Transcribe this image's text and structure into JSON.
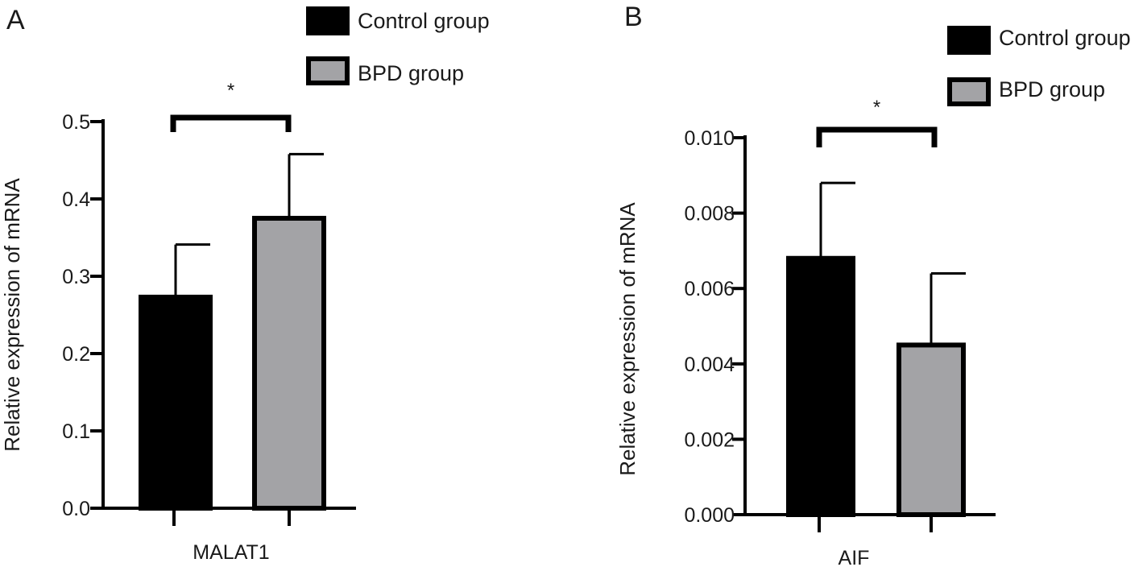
{
  "chart_data": [
    {
      "panel_label": "A",
      "type": "bar",
      "categories": [
        "MALAT1"
      ],
      "series": [
        {
          "name": "Control group",
          "values": [
            0.273
          ],
          "error": [
            0.068
          ],
          "color": "#000000"
        },
        {
          "name": "BPD group",
          "values": [
            0.375
          ],
          "error": [
            0.083
          ],
          "color": "#a3a3a6"
        }
      ],
      "ylabel": "Relative expression of mRNA",
      "ylim": [
        0,
        0.5
      ],
      "yticks": [
        "0.0",
        "0.1",
        "0.2",
        "0.3",
        "0.4",
        "0.5"
      ],
      "significance": "*",
      "legend_position": "top-right",
      "grid": false
    },
    {
      "panel_label": "B",
      "type": "bar",
      "categories": [
        "AIF"
      ],
      "series": [
        {
          "name": "Control group",
          "values": [
            0.0068
          ],
          "error": [
            0.002
          ],
          "color": "#000000"
        },
        {
          "name": "BPD group",
          "values": [
            0.0045
          ],
          "error": [
            0.0019
          ],
          "color": "#a3a3a6"
        }
      ],
      "ylabel": "Relative expression of mRNA",
      "ylim": [
        0,
        0.01
      ],
      "yticks": [
        "0.000",
        "0.002",
        "0.004",
        "0.006",
        "0.008",
        "0.010"
      ],
      "significance": "*",
      "legend_position": "top-right",
      "grid": false
    }
  ]
}
